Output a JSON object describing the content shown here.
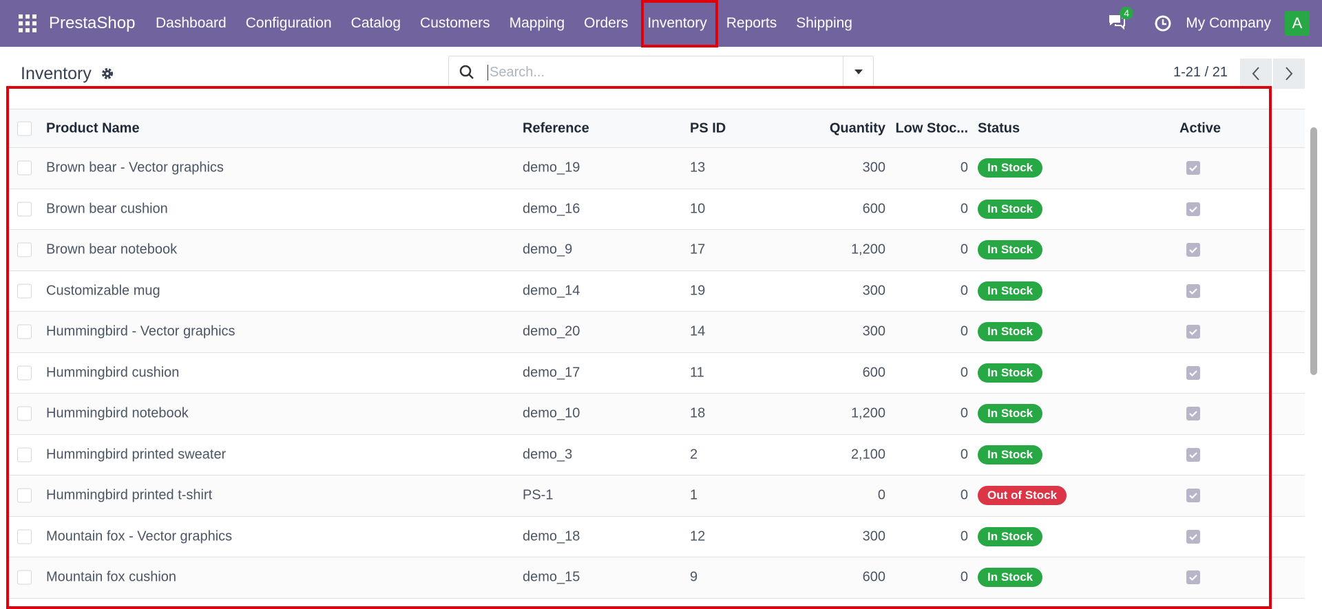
{
  "navbar": {
    "app_name": "PrestaShop",
    "menu": [
      "Dashboard",
      "Configuration",
      "Catalog",
      "Customers",
      "Mapping",
      "Orders",
      "Inventory",
      "Reports",
      "Shipping"
    ],
    "messages_badge": "4",
    "company": "My Company",
    "avatar": "A"
  },
  "control_panel": {
    "title": "Inventory",
    "search_placeholder": "Search...",
    "pager": "1-21 / 21"
  },
  "table": {
    "headers": [
      "Product Name",
      "Reference",
      "PS ID",
      "Quantity",
      "Low Stoc...",
      "Status",
      "Active"
    ],
    "rows": [
      [
        "Brown bear - Vector graphics",
        "demo_19",
        "13",
        "300",
        "0",
        "In Stock"
      ],
      [
        "Brown bear cushion",
        "demo_16",
        "10",
        "600",
        "0",
        "In Stock"
      ],
      [
        "Brown bear notebook",
        "demo_9",
        "17",
        "1,200",
        "0",
        "In Stock"
      ],
      [
        "Customizable mug",
        "demo_14",
        "19",
        "300",
        "0",
        "In Stock"
      ],
      [
        "Hummingbird - Vector graphics",
        "demo_20",
        "14",
        "300",
        "0",
        "In Stock"
      ],
      [
        "Hummingbird cushion",
        "demo_17",
        "11",
        "600",
        "0",
        "In Stock"
      ],
      [
        "Hummingbird notebook",
        "demo_10",
        "18",
        "1,200",
        "0",
        "In Stock"
      ],
      [
        "Hummingbird printed sweater",
        "demo_3",
        "2",
        "2,100",
        "0",
        "In Stock"
      ],
      [
        "Hummingbird printed t-shirt",
        "PS-1",
        "1",
        "0",
        "0",
        "Out of Stock"
      ],
      [
        "Mountain fox - Vector graphics",
        "demo_18",
        "12",
        "300",
        "0",
        "In Stock"
      ],
      [
        "Mountain fox cushion",
        "demo_15",
        "9",
        "600",
        "0",
        "In Stock"
      ]
    ]
  }
}
